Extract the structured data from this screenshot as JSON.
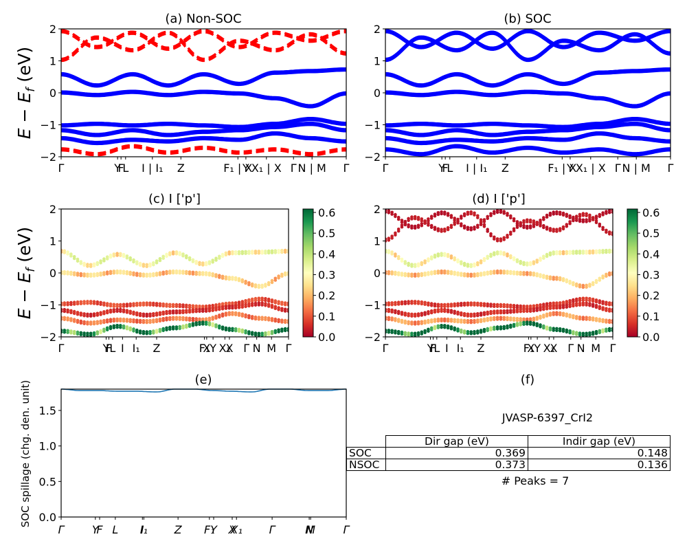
{
  "figure": {
    "titles": {
      "a": "(a) Non-SOC",
      "b": "(b) SOC",
      "c": "(c)  I ['p']",
      "d": "(d) I ['p']",
      "e": "(e)",
      "f": "(f)"
    },
    "ylabel_band": "E − E",
    "ylabel_band_sub": "f",
    "ylabel_band_unit": " (eV)",
    "ylabel_spillage": "SOC spillage (chg. den. unit)"
  },
  "colors": {
    "nonsoc_primary": "#0000ff",
    "nonsoc_secondary": "#ff0000",
    "soc": "#0000ff",
    "spillage_line": "#1f77b4",
    "cmap": [
      "#a50026",
      "#d73027",
      "#f46d43",
      "#fdae61",
      "#fee08b",
      "#ffffbf",
      "#d9ef8b",
      "#a6d96a",
      "#66bd63",
      "#1a9850",
      "#006837"
    ]
  },
  "chart_data": [
    {
      "id": "a",
      "type": "line",
      "title": "(a) Non-SOC",
      "ylabel": "E − E_f (eV)",
      "ylim": [
        -2,
        2
      ],
      "yticks": [
        "2",
        "1",
        "0",
        "−1",
        "−2"
      ],
      "kpath": [
        "Γ",
        "Y",
        "F",
        "L",
        "I",
        "I1",
        "Z",
        "F1",
        "X",
        "Y",
        "X1",
        "X",
        "Γ",
        "N",
        "M",
        "Γ"
      ],
      "xtick_labels": [
        "Γ",
        "Y",
        "F",
        "L",
        "I | I₁",
        "Z",
        "F₁ | X",
        "Y",
        "X₁ | X",
        "Γ",
        "N | M",
        "Γ"
      ],
      "series": [
        {
          "style": "solid",
          "bands": [
            [
              0.55,
              0.2,
              0.55,
              0.2,
              0.55,
              0.25,
              0.6,
              0.65,
              0.7
            ],
            [
              -0.02,
              -0.1,
              0.0,
              -0.1,
              0.0,
              -0.05,
              -0.2,
              -0.45,
              -0.05
            ],
            [
              -1.05,
              -1.0,
              -1.05,
              -1.0,
              -1.05,
              -1.1,
              -1.0,
              -0.85,
              -1.0
            ],
            [
              -1.2,
              -1.35,
              -1.2,
              -1.35,
              -1.25,
              -1.2,
              -1.1,
              -1.0,
              -1.2
            ],
            [
              -1.45,
              -1.6,
              -1.5,
              -1.55,
              -1.45,
              -1.5,
              -1.3,
              -1.45,
              -1.55
            ]
          ]
        },
        {
          "style": "dashed",
          "bands": [
            [
              1.9,
              1.4,
              1.85,
              1.35,
              1.9,
              1.4,
              1.85,
              1.6,
              1.9
            ],
            [
              1.0,
              1.7,
              1.3,
              1.85,
              1.0,
              1.6,
              1.3,
              1.8,
              1.2
            ],
            [
              -1.8,
              -1.95,
              -1.7,
              -1.9,
              -1.75,
              -1.9,
              -1.8,
              -1.95,
              -1.8
            ]
          ]
        }
      ]
    },
    {
      "id": "b",
      "type": "line",
      "title": "(b) SOC",
      "ylim": [
        -2,
        2
      ],
      "yticks": [
        "2",
        "1",
        "0",
        "−1",
        "−2"
      ],
      "xtick_labels": [
        "Γ",
        "Y",
        "F",
        "L",
        "I | I₁",
        "Z",
        "F₁ | X",
        "Y",
        "X₁ | X",
        "Γ",
        "N | M",
        "Γ"
      ],
      "series": [
        {
          "style": "solid",
          "bands": [
            [
              1.9,
              1.4,
              1.85,
              1.35,
              1.9,
              1.4,
              1.85,
              1.6,
              1.9
            ],
            [
              1.0,
              1.7,
              1.3,
              1.85,
              1.0,
              1.6,
              1.3,
              1.8,
              1.2
            ],
            [
              0.55,
              0.2,
              0.55,
              0.2,
              0.55,
              0.25,
              0.6,
              0.65,
              0.7
            ],
            [
              -0.02,
              -0.1,
              0.0,
              -0.1,
              0.0,
              -0.05,
              -0.2,
              -0.45,
              -0.05
            ],
            [
              -1.05,
              -1.0,
              -1.05,
              -1.0,
              -1.05,
              -1.1,
              -1.0,
              -0.85,
              -1.0
            ],
            [
              -1.2,
              -1.35,
              -1.2,
              -1.35,
              -1.25,
              -1.2,
              -1.1,
              -1.0,
              -1.2
            ],
            [
              -1.45,
              -1.6,
              -1.5,
              -1.55,
              -1.45,
              -1.5,
              -1.3,
              -1.45,
              -1.55
            ],
            [
              -1.8,
              -1.95,
              -1.7,
              -1.9,
              -1.75,
              -1.9,
              -1.8,
              -1.95,
              -1.8
            ]
          ]
        }
      ]
    },
    {
      "id": "c",
      "type": "scatter",
      "title": "(c)  I ['p']",
      "ylim": [
        -2,
        2
      ],
      "yticks": [
        "2",
        "1",
        "0",
        "−1",
        "−2"
      ],
      "xtick_labels": [
        "Γ",
        "Y",
        "F",
        "L",
        "I",
        "I₁",
        "Z",
        "F₁",
        "X",
        "Y",
        "X₁",
        "X",
        "Γ",
        "N",
        "M",
        "Γ"
      ],
      "colorbar": {
        "range": [
          0.0,
          0.6
        ],
        "ticks": [
          "0.6",
          "0.5",
          "0.4",
          "0.3",
          "0.2",
          "0.1",
          "0.0"
        ]
      },
      "bands": [
        {
          "values": [
            0.65,
            0.2,
            0.55,
            0.2,
            0.6,
            0.25,
            0.6,
            0.62,
            0.65
          ],
          "weight": 0.28
        },
        {
          "values": [
            -0.02,
            -0.1,
            0.0,
            -0.1,
            0.0,
            -0.05,
            -0.2,
            -0.45,
            -0.05
          ],
          "weight": 0.2
        },
        {
          "values": [
            -1.0,
            -0.95,
            -1.05,
            -1.0,
            -1.05,
            -1.1,
            -1.0,
            -0.85,
            -1.0
          ],
          "weight": 0.08
        },
        {
          "values": [
            -1.2,
            -1.35,
            -1.2,
            -1.35,
            -1.25,
            -1.2,
            -1.1,
            -1.0,
            -1.2
          ],
          "weight": 0.05
        },
        {
          "values": [
            -1.45,
            -1.6,
            -1.5,
            -1.55,
            -1.45,
            -1.5,
            -1.3,
            -1.45,
            -1.55
          ],
          "weight": 0.12
        },
        {
          "values": [
            -1.85,
            -1.95,
            -1.7,
            -1.9,
            -1.75,
            -1.6,
            -1.8,
            -1.95,
            -1.8
          ],
          "weight": 0.5
        }
      ]
    },
    {
      "id": "d",
      "type": "scatter",
      "title": "(d) I ['p']",
      "ylim": [
        -2,
        2
      ],
      "yticks": [
        "2",
        "1",
        "0",
        "−1",
        "−2"
      ],
      "xtick_labels": [
        "Γ",
        "Y",
        "F",
        "L",
        "I",
        "I₁",
        "Z",
        "F₁",
        "X",
        "Y",
        "X₁",
        "X",
        "Γ",
        "N",
        "M",
        "Γ"
      ],
      "colorbar": {
        "range": [
          0.0,
          0.6
        ],
        "ticks": [
          "0.6",
          "0.5",
          "0.4",
          "0.3",
          "0.2",
          "0.1",
          "0.0"
        ]
      },
      "bands": [
        {
          "values": [
            1.9,
            1.4,
            1.85,
            1.35,
            1.9,
            1.4,
            1.85,
            1.6,
            1.9
          ],
          "weight": 0.02
        },
        {
          "values": [
            1.0,
            1.7,
            1.3,
            1.85,
            1.0,
            1.6,
            1.3,
            1.8,
            1.2
          ],
          "weight": 0.03
        },
        {
          "values": [
            0.65,
            0.2,
            0.55,
            0.2,
            0.6,
            0.25,
            0.6,
            0.62,
            0.65
          ],
          "weight": 0.28
        },
        {
          "values": [
            -0.02,
            -0.1,
            0.0,
            -0.1,
            0.0,
            -0.05,
            -0.2,
            -0.45,
            -0.05
          ],
          "weight": 0.2
        },
        {
          "values": [
            -1.0,
            -0.95,
            -1.05,
            -1.0,
            -1.05,
            -1.1,
            -1.0,
            -0.85,
            -1.0
          ],
          "weight": 0.06
        },
        {
          "values": [
            -1.2,
            -1.35,
            -1.2,
            -1.35,
            -1.25,
            -1.2,
            -1.1,
            -1.0,
            -1.2
          ],
          "weight": 0.05
        },
        {
          "values": [
            -1.45,
            -1.6,
            -1.5,
            -1.55,
            -1.45,
            -1.5,
            -1.3,
            -1.45,
            -1.55
          ],
          "weight": 0.15
        },
        {
          "values": [
            -1.85,
            -1.95,
            -1.7,
            -1.9,
            -1.75,
            -1.6,
            -1.8,
            -1.95,
            -1.8
          ],
          "weight": 0.55
        }
      ]
    },
    {
      "id": "e",
      "type": "line",
      "title": "(e)",
      "ylabel": "SOC spillage (chg. den. unit)",
      "ylim": [
        0.0,
        1.8
      ],
      "yticks": [
        "1.5",
        "1.0",
        "0.5",
        "0.0"
      ],
      "xtick_labels": [
        "Γ",
        "Y",
        "F",
        "L",
        "I",
        "I₁",
        "Z",
        "F₁",
        "Y",
        "X",
        "X₁",
        "Γ",
        "N",
        "M",
        "Γ"
      ],
      "series": [
        {
          "name": "",
          "values": [
            1.8,
            1.78,
            1.78,
            1.77,
            1.77,
            1.76,
            1.8,
            1.8,
            1.78,
            1.77,
            1.76,
            1.8,
            1.8,
            1.78,
            1.78,
            1.8
          ]
        }
      ]
    },
    {
      "id": "f",
      "type": "table",
      "title": "(f)",
      "subtitle": "JVASP-6397_CrI2",
      "columns": [
        "Dir gap (eV)",
        "Indir gap (eV)"
      ],
      "rows": [
        {
          "label": "SOC",
          "dir": "0.369",
          "indir": "0.148"
        },
        {
          "label": "NSOC",
          "dir": "0.373",
          "indir": "0.136"
        }
      ],
      "footer": "# Peaks = 7"
    }
  ]
}
